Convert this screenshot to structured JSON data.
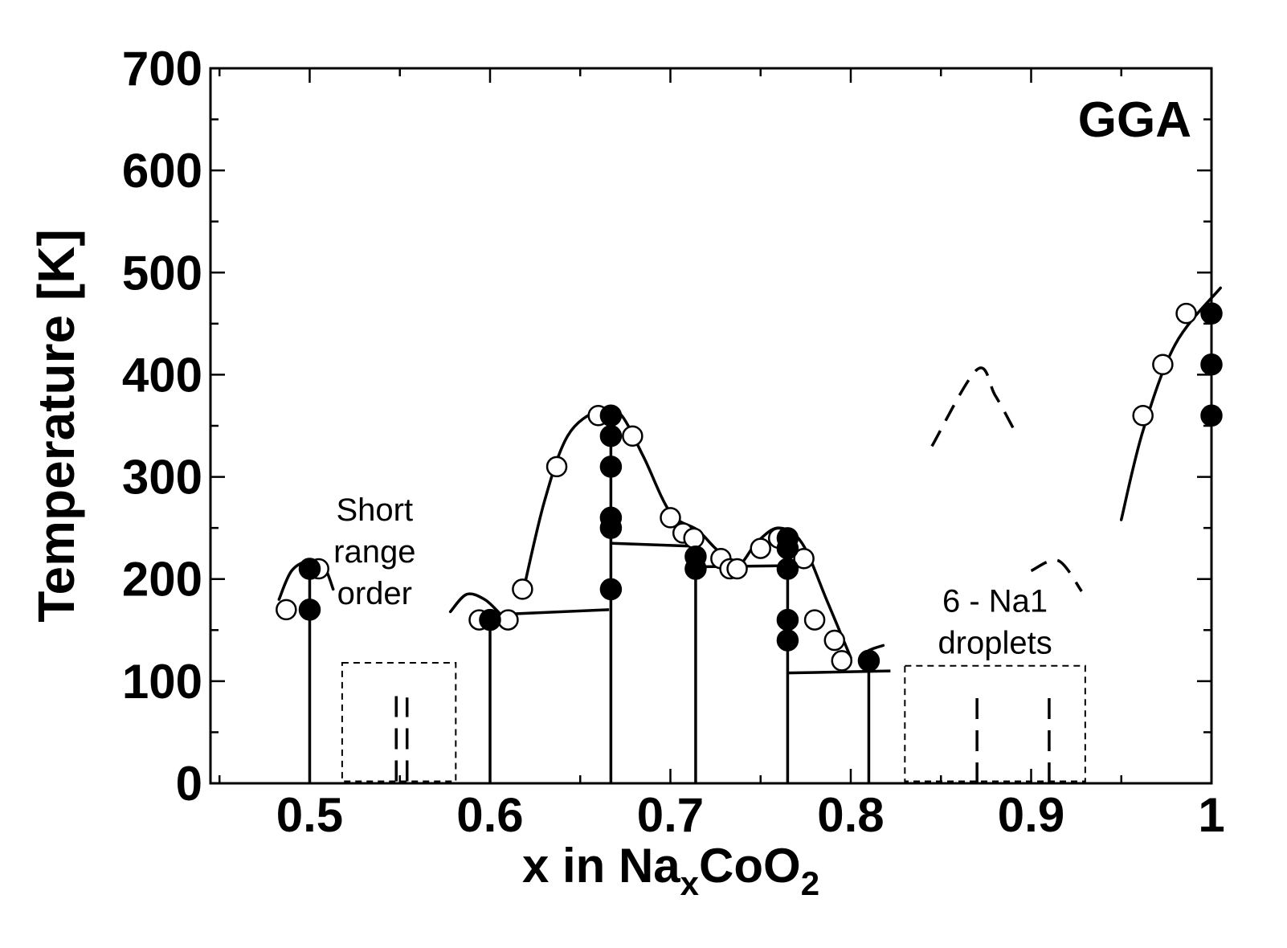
{
  "chart_data": {
    "type": "scatter",
    "title": "",
    "panel_label": "GGA",
    "xlabel": {
      "base": "x in Na",
      "sub1": "x",
      "mid": "CoO",
      "sub2": "2"
    },
    "ylabel": "Temperature [K]",
    "xlim": [
      0.445,
      1.0
    ],
    "ylim": [
      0,
      700
    ],
    "x_ticks": [
      {
        "value": 0.5,
        "label": "0.5"
      },
      {
        "value": 0.6,
        "label": "0.6"
      },
      {
        "value": 0.7,
        "label": "0.7"
      },
      {
        "value": 0.8,
        "label": "0.8"
      },
      {
        "value": 0.9,
        "label": "0.9"
      },
      {
        "value": 1.0,
        "label": "1"
      }
    ],
    "y_ticks": [
      {
        "value": 0,
        "label": "0"
      },
      {
        "value": 100,
        "label": "100"
      },
      {
        "value": 200,
        "label": "200"
      },
      {
        "value": 300,
        "label": "300"
      },
      {
        "value": 400,
        "label": "400"
      },
      {
        "value": 500,
        "label": "500"
      },
      {
        "value": 600,
        "label": "600"
      },
      {
        "value": 700,
        "label": "700"
      }
    ],
    "annotations": [
      {
        "lines": [
          "Short",
          "range",
          "order"
        ],
        "x": 0.536,
        "y": 257
      },
      {
        "lines": [
          "6 - Na1",
          "droplets"
        ],
        "x": 0.88,
        "y": 168
      }
    ],
    "series": [
      {
        "marker": "open-circle",
        "points": [
          [
            0.487,
            170
          ],
          [
            0.505,
            210
          ],
          [
            0.594,
            160
          ],
          [
            0.61,
            160
          ],
          [
            0.618,
            190
          ],
          [
            0.637,
            310
          ],
          [
            0.66,
            360
          ],
          [
            0.679,
            340
          ],
          [
            0.7,
            260
          ],
          [
            0.707,
            245
          ],
          [
            0.713,
            240
          ],
          [
            0.728,
            220
          ],
          [
            0.733,
            210
          ],
          [
            0.737,
            210
          ],
          [
            0.75,
            230
          ],
          [
            0.76,
            240
          ],
          [
            0.774,
            220
          ],
          [
            0.78,
            160
          ],
          [
            0.791,
            140
          ],
          [
            0.795,
            120
          ],
          [
            0.962,
            360
          ],
          [
            0.973,
            410
          ],
          [
            0.986,
            460
          ]
        ]
      },
      {
        "marker": "filled-circle",
        "points": [
          [
            0.5,
            210
          ],
          [
            0.5,
            170
          ],
          [
            0.6,
            160
          ],
          [
            0.667,
            360
          ],
          [
            0.667,
            340
          ],
          [
            0.667,
            310
          ],
          [
            0.667,
            260
          ],
          [
            0.667,
            250
          ],
          [
            0.667,
            190
          ],
          [
            0.714,
            222
          ],
          [
            0.714,
            210
          ],
          [
            0.765,
            240
          ],
          [
            0.765,
            230
          ],
          [
            0.765,
            210
          ],
          [
            0.765,
            160
          ],
          [
            0.765,
            140
          ],
          [
            0.81,
            120
          ],
          [
            1.0,
            460
          ],
          [
            1.0,
            410
          ],
          [
            1.0,
            360
          ]
        ]
      }
    ],
    "solid_curves": [
      [
        [
          0.483,
          180
        ],
        [
          0.49,
          208
        ],
        [
          0.5,
          218
        ],
        [
          0.508,
          212
        ],
        [
          0.513,
          190
        ]
      ],
      [
        [
          0.578,
          168
        ],
        [
          0.587,
          185
        ],
        [
          0.597,
          180
        ],
        [
          0.605,
          167
        ]
      ],
      [
        [
          0.618,
          185
        ],
        [
          0.63,
          275
        ],
        [
          0.643,
          340
        ],
        [
          0.66,
          365
        ],
        [
          0.672,
          362
        ],
        [
          0.685,
          320
        ],
        [
          0.7,
          265
        ],
        [
          0.715,
          248
        ],
        [
          0.725,
          230
        ],
        [
          0.737,
          213
        ],
        [
          0.748,
          236
        ],
        [
          0.76,
          250
        ],
        [
          0.773,
          235
        ],
        [
          0.787,
          178
        ],
        [
          0.8,
          123
        ]
      ],
      [
        [
          0.805,
          122
        ],
        [
          0.81,
          130
        ],
        [
          0.818,
          135
        ]
      ],
      [
        [
          0.95,
          258
        ],
        [
          0.962,
          345
        ],
        [
          0.98,
          430
        ],
        [
          1.005,
          485
        ]
      ]
    ],
    "dashed_curves": [
      [
        [
          0.845,
          330
        ],
        [
          0.87,
          405
        ],
        [
          0.88,
          380
        ],
        [
          0.89,
          348
        ]
      ],
      [
        [
          0.9,
          208
        ],
        [
          0.915,
          218
        ],
        [
          0.928,
          188
        ]
      ]
    ],
    "boundaries": [
      [
        [
          0.5,
          0
        ],
        [
          0.5,
          210
        ]
      ],
      [
        [
          0.6,
          0
        ],
        [
          0.6,
          160
        ]
      ],
      [
        [
          0.601,
          165
        ],
        [
          0.666,
          170
        ]
      ],
      [
        [
          0.667,
          0
        ],
        [
          0.667,
          365
        ]
      ],
      [
        [
          0.667,
          235
        ],
        [
          0.714,
          232
        ]
      ],
      [
        [
          0.714,
          0
        ],
        [
          0.714,
          230
        ]
      ],
      [
        [
          0.714,
          212
        ],
        [
          0.765,
          213
        ]
      ],
      [
        [
          0.765,
          0
        ],
        [
          0.765,
          245
        ]
      ],
      [
        [
          0.765,
          108
        ],
        [
          0.822,
          110
        ]
      ],
      [
        [
          0.81,
          0
        ],
        [
          0.81,
          118
        ]
      ]
    ],
    "dashed_lines": [
      [
        [
          0.548,
          2
        ],
        [
          0.548,
          88
        ]
      ],
      [
        [
          0.554,
          2
        ],
        [
          0.554,
          84
        ]
      ],
      [
        [
          0.87,
          0
        ],
        [
          0.87,
          88
        ]
      ],
      [
        [
          0.91,
          0
        ],
        [
          0.91,
          88
        ]
      ]
    ],
    "dashed_boxes": [
      {
        "x0": 0.518,
        "x1": 0.581,
        "y0": 2,
        "y1": 118
      },
      {
        "x0": 0.83,
        "x1": 0.93,
        "y0": 2,
        "y1": 115
      }
    ],
    "grid": false
  }
}
